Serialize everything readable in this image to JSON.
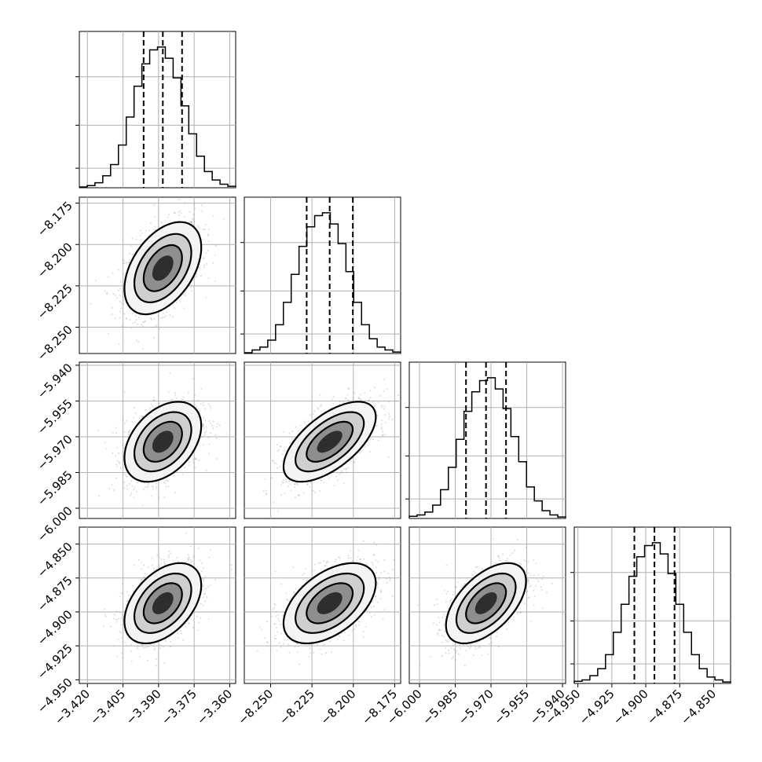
{
  "chart_data": {
    "type": "corner",
    "parameters": [
      {
        "range": [
          -3.4234,
          -3.3575
        ],
        "ticks": [
          -3.42,
          -3.405,
          -3.39,
          -3.375,
          -3.36
        ],
        "tick_labels": [
          "−3.420",
          "−3.405",
          "−3.390",
          "−3.375",
          "−3.360"
        ],
        "quantiles": [
          -3.3963,
          -3.3882,
          -3.3801
        ]
      },
      {
        "range": [
          -8.2659,
          -8.1714
        ],
        "ticks": [
          -8.25,
          -8.225,
          -8.2,
          -8.175
        ],
        "tick_labels": [
          "−8.250",
          "−8.225",
          "−8.200",
          "−8.175"
        ],
        "quantiles": [
          -8.2282,
          -8.2143,
          -8.2003
        ]
      },
      {
        "range": [
          -6.0043,
          -5.9387
        ],
        "ticks": [
          -6.0,
          -5.985,
          -5.97,
          -5.955,
          -5.94
        ],
        "tick_labels": [
          "−6.000",
          "−5.985",
          "−5.970",
          "−5.955",
          "−5.940"
        ],
        "quantiles": [
          -5.9805,
          -5.9721,
          -5.9637
        ]
      },
      {
        "range": [
          -4.9527,
          -4.8375
        ],
        "ticks": [
          -4.95,
          -4.925,
          -4.9,
          -4.875,
          -4.85
        ],
        "tick_labels": [
          "−4.950",
          "−4.925",
          "−4.900",
          "−4.875",
          "−4.850"
        ],
        "quantiles": [
          -4.9084,
          -4.8936,
          -4.8788
        ]
      }
    ],
    "histograms": [
      {
        "values": [
          0,
          0.01,
          0.03,
          0.08,
          0.16,
          0.3,
          0.5,
          0.72,
          0.88,
          0.98,
          1.0,
          0.92,
          0.78,
          0.58,
          0.38,
          0.22,
          0.11,
          0.05,
          0.02,
          0.005
        ]
      },
      {
        "values": [
          0,
          0.02,
          0.04,
          0.09,
          0.2,
          0.36,
          0.56,
          0.76,
          0.9,
          0.98,
          1.0,
          0.92,
          0.78,
          0.58,
          0.36,
          0.2,
          0.1,
          0.04,
          0.02,
          0.005
        ]
      },
      {
        "values": [
          0.01,
          0.02,
          0.04,
          0.09,
          0.2,
          0.36,
          0.56,
          0.76,
          0.9,
          0.98,
          1.0,
          0.92,
          0.78,
          0.58,
          0.4,
          0.22,
          0.12,
          0.05,
          0.02,
          0.005
        ]
      },
      {
        "values": [
          0.01,
          0.02,
          0.05,
          0.1,
          0.2,
          0.36,
          0.56,
          0.76,
          0.9,
          0.98,
          1.0,
          0.92,
          0.78,
          0.56,
          0.36,
          0.2,
          0.1,
          0.04,
          0.02,
          0.005
        ]
      }
    ],
    "correlations": [
      {
        "row": 1,
        "col": 0,
        "rho": 0.45
      },
      {
        "row": 2,
        "col": 0,
        "rho": 0.4
      },
      {
        "row": 2,
        "col": 1,
        "rho": 0.62
      },
      {
        "row": 3,
        "col": 0,
        "rho": 0.45
      },
      {
        "row": 3,
        "col": 1,
        "rho": 0.5
      },
      {
        "row": 3,
        "col": 2,
        "rho": 0.55
      }
    ],
    "quantile_levels": [
      0.16,
      0.5,
      0.84
    ],
    "grid": true
  }
}
